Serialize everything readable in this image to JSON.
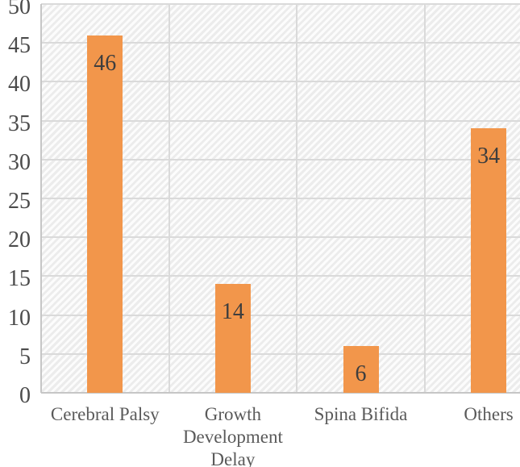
{
  "chart_data": {
    "type": "bar",
    "title": "",
    "xlabel": "",
    "ylabel": "",
    "categories": [
      "Cerebral Palsy",
      "Growth Development Delay",
      "Spina Bifida",
      "Others"
    ],
    "values": [
      46,
      14,
      6,
      34
    ],
    "data_labels": [
      "46",
      "14",
      "6",
      "34"
    ],
    "ylim": [
      0,
      50
    ],
    "yticks": [
      0,
      5,
      10,
      15,
      20,
      25,
      30,
      35,
      40,
      45,
      50
    ],
    "grid": true,
    "vertical_category_separators": true,
    "legend_position": "none",
    "plot_background": "light-diagonal-hatch"
  },
  "colors": {
    "bar": "#F2964B",
    "gridline": "#DADADA",
    "axis_line": "#C6C6C6",
    "tick_text": "#4B4B4B",
    "category_text": "#5A5A5A",
    "data_label_text": "#3E3E3E",
    "background": "#FFFFFF"
  }
}
